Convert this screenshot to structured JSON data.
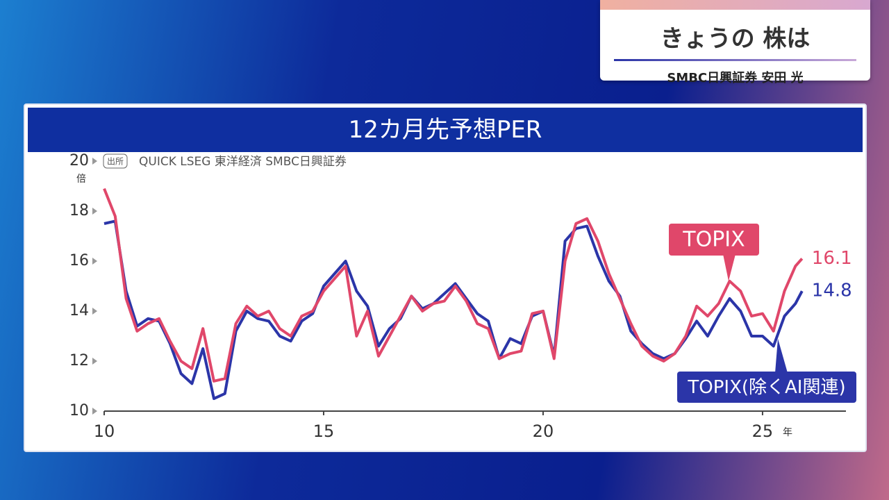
{
  "header": {
    "title": "きょうの 株は",
    "subtitle": "SMBC日興証券 安田 光"
  },
  "chart_data": {
    "type": "line",
    "title": "12カ月先予想PER",
    "source_label": "出所",
    "source": "QUICK LSEG 東洋経済 SMBC日興証券",
    "y_unit": "倍",
    "x_unit": "年",
    "xlim": [
      10,
      26.9
    ],
    "xticks": [
      10,
      15,
      20,
      25
    ],
    "ylim": [
      10,
      20
    ],
    "yticks": [
      10,
      12,
      14,
      16,
      18,
      20
    ],
    "x": [
      10,
      10.25,
      10.5,
      10.75,
      11,
      11.25,
      11.5,
      11.75,
      12,
      12.25,
      12.5,
      12.75,
      13,
      13.25,
      13.5,
      13.75,
      14,
      14.25,
      14.5,
      14.75,
      15,
      15.25,
      15.5,
      15.75,
      16,
      16.25,
      16.5,
      16.75,
      17,
      17.25,
      17.5,
      17.75,
      18,
      18.25,
      18.5,
      18.75,
      19,
      19.25,
      19.5,
      19.75,
      20,
      20.25,
      20.5,
      20.75,
      21,
      21.25,
      21.5,
      21.75,
      22,
      22.25,
      22.5,
      22.75,
      23,
      23.25,
      23.5,
      23.75,
      24,
      24.25,
      24.5,
      24.75,
      25,
      25.25,
      25.5,
      25.75,
      25.9
    ],
    "series": [
      {
        "name": "TOPIX(除くAI関連)",
        "color": "#2b35a8",
        "values": [
          17.5,
          17.6,
          14.8,
          13.4,
          13.7,
          13.6,
          12.7,
          11.5,
          11.1,
          12.5,
          10.5,
          10.7,
          13.2,
          14.0,
          13.7,
          13.6,
          13.0,
          12.8,
          13.6,
          13.9,
          15.0,
          15.5,
          16.0,
          14.8,
          14.2,
          12.6,
          13.3,
          13.7,
          14.6,
          14.1,
          14.3,
          14.7,
          15.1,
          14.5,
          13.9,
          13.6,
          12.1,
          12.9,
          12.7,
          13.8,
          14.0,
          12.2,
          16.8,
          17.3,
          17.4,
          16.2,
          15.2,
          14.6,
          13.2,
          12.7,
          12.3,
          12.1,
          12.3,
          12.9,
          13.6,
          13.0,
          13.8,
          14.5,
          14.0,
          13.0,
          13.0,
          12.6,
          13.8,
          14.3,
          14.8
        ]
      },
      {
        "name": "TOPIX",
        "color": "#e0476a",
        "values": [
          18.9,
          17.8,
          14.5,
          13.2,
          13.5,
          13.7,
          12.8,
          12.0,
          11.7,
          13.3,
          11.2,
          11.3,
          13.5,
          14.2,
          13.8,
          14.0,
          13.3,
          13.0,
          13.8,
          14.0,
          14.8,
          15.3,
          15.8,
          13.0,
          14.0,
          12.2,
          13.0,
          13.8,
          14.6,
          14.0,
          14.3,
          14.4,
          15.0,
          14.4,
          13.5,
          13.3,
          12.1,
          12.3,
          12.4,
          13.9,
          14.0,
          12.1,
          16.0,
          17.5,
          17.7,
          16.8,
          15.5,
          14.5,
          13.5,
          12.6,
          12.2,
          12.0,
          12.3,
          13.0,
          14.2,
          13.8,
          14.3,
          15.2,
          14.8,
          13.8,
          13.9,
          13.2,
          14.8,
          15.8,
          16.1
        ]
      }
    ]
  }
}
